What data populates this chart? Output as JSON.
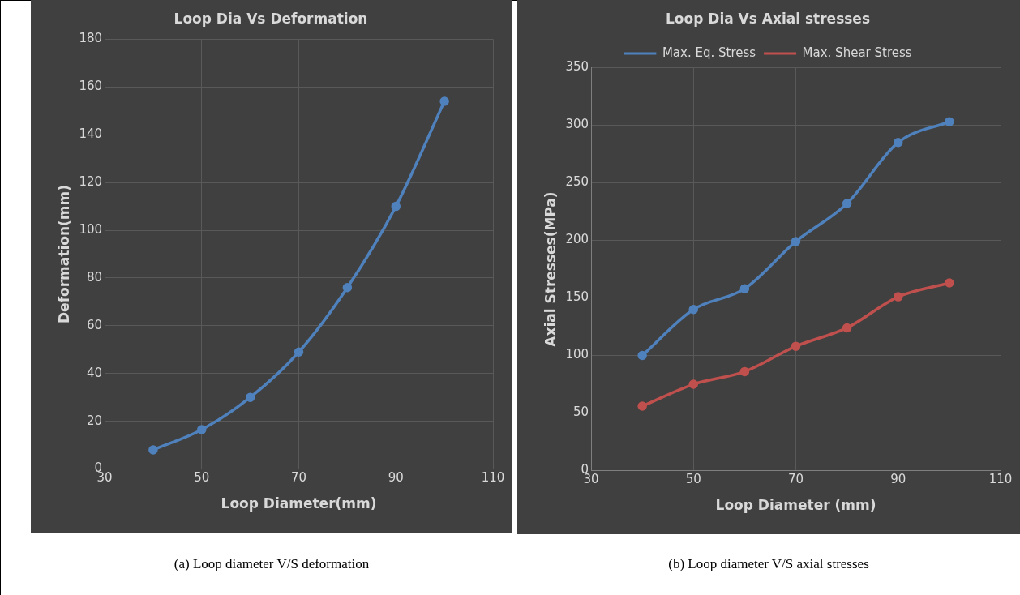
{
  "chart_data": [
    {
      "type": "line",
      "title": "Loop Dia Vs Deformation",
      "xlabel": "Loop Diameter(mm)",
      "ylabel": "Deformation(mm)",
      "x": [
        40,
        50,
        60,
        70,
        80,
        90,
        100
      ],
      "series": [
        {
          "color": "#4f81bd",
          "values": [
            8,
            16.5,
            30,
            49,
            76,
            110,
            154
          ]
        }
      ],
      "xlim": [
        30,
        110
      ],
      "xticks": [
        30,
        50,
        70,
        90,
        110
      ],
      "ylim": [
        0,
        180
      ],
      "yticks": [
        0,
        20,
        40,
        60,
        80,
        100,
        120,
        140,
        160,
        180
      ],
      "grid": true,
      "legend": false,
      "marker": "circle",
      "line_style": "solid",
      "annotations": [
        "(a) Loop diameter V/S deformation"
      ]
    },
    {
      "type": "line",
      "title": "Loop Dia Vs Axial stresses",
      "xlabel": "Loop Diameter (mm)",
      "ylabel": "Axial Stresses(MPa)",
      "x": [
        40,
        50,
        60,
        70,
        80,
        90,
        100
      ],
      "series": [
        {
          "name": "Max. Eq. Stress",
          "color": "#4f81bd",
          "values": [
            100,
            140,
            158,
            199,
            232,
            285,
            303
          ]
        },
        {
          "name": "Max. Shear Stress",
          "color": "#c0504d",
          "values": [
            56,
            75,
            86,
            108,
            124,
            151,
            163
          ]
        }
      ],
      "xlim": [
        30,
        110
      ],
      "xticks": [
        30,
        50,
        70,
        90,
        110
      ],
      "ylim": [
        0,
        350
      ],
      "yticks": [
        0,
        50,
        100,
        150,
        200,
        250,
        300,
        350
      ],
      "grid": true,
      "legend": "top",
      "marker": "circle",
      "line_style": "solid",
      "annotations": [
        "(b) Loop diameter V/S axial stresses"
      ]
    }
  ]
}
